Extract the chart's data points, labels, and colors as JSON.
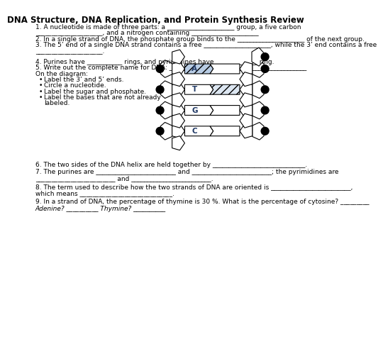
{
  "title": "DNA Structure, DNA Replication, and Protein Synthesis Review",
  "line1a": "1. A nucleotide is made of three parts: a _____________________ group, a five carbon",
  "line1b": "_____________________, and a nitrogen containing _____________________",
  "line2": "2. In a single strand of DNA, the phosphate group binds to the _____________________ of the next group.",
  "line3a": "3. The 5’ end of a single DNA strand contains a free _____________________, while the 3’ end contains a free",
  "line3b": "_____________________.",
  "line4": "4. Purines have ___________ rings, and pyrimidines have _____________ ring.",
  "line5": "5. Write out the complete name for DNA: ___________________________________________",
  "on_diagram": "On the diagram:",
  "bullets": [
    "Label the 3’ and 5’ ends.",
    "Circle a nucleotide.",
    "Label the sugar and phosphate.",
    "Label the bases that are not already",
    "labeled."
  ],
  "bullet_indent": 18,
  "bases": [
    "A",
    "T",
    "G",
    "C"
  ],
  "base_fill_left": [
    "#b8cce4",
    "#ffffff",
    "#ffffff",
    "#ffffff"
  ],
  "base_fill_right": [
    "#ffffff",
    "#dce6f1",
    "#ffffff",
    "#ffffff"
  ],
  "hatching_left": [
    true,
    false,
    false,
    false
  ],
  "hatching_right": [
    false,
    true,
    false,
    false
  ],
  "base_text_color": "#1f3864",
  "line6": "6. The two sides of the DNA helix are held together by _____________________________.",
  "line7a": "7. The purines are _________________________ and _________________________; the pyrimidines are",
  "line7b": "_________________________ and _________________________.",
  "line8a": "8. The term used to describe how the two strands of DNA are oriented is _________________________,",
  "line8b": "which means _____________________________.",
  "line9a": "9. In a strand of DNA, the percentage of thymine is 30 %. What is the percentage of cytosine? _________",
  "line9b": "Adenine? __________ Thymine? __________",
  "bg": "#ffffff"
}
